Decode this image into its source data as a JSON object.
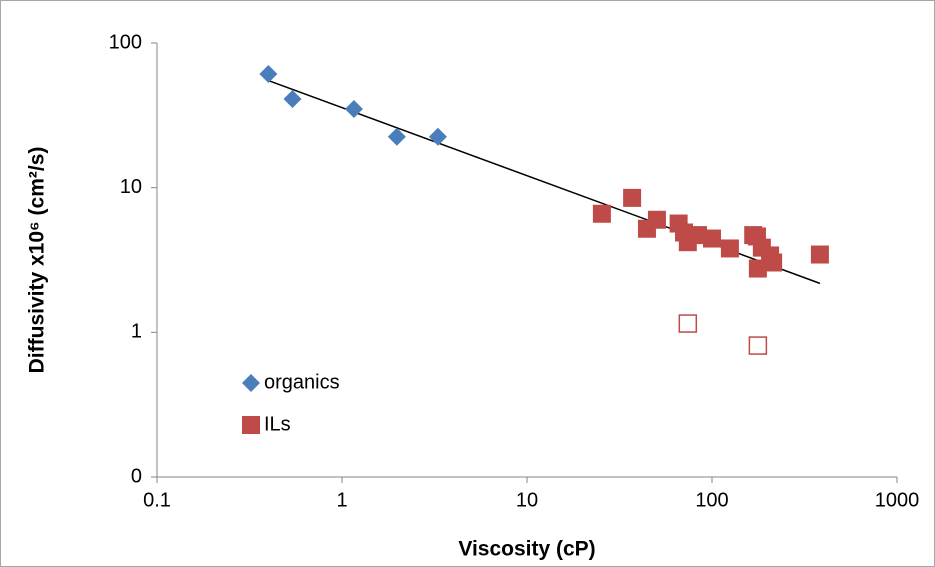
{
  "chart_data": {
    "type": "scatter",
    "xlabel": "Viscosity (cP)",
    "ylabel": "Diffusivity x10⁶ (cm²/s)",
    "xscale": "log",
    "yscale": "log",
    "xlim": [
      0.1,
      1000
    ],
    "ylim": [
      0.1,
      100
    ],
    "xticks": [
      0.1,
      1,
      10,
      100,
      1000
    ],
    "yticks": [
      {
        "value": 0.1,
        "label": "0"
      },
      1,
      10,
      100
    ],
    "series": [
      {
        "name": "organics",
        "color": "#4a7ebb",
        "marker": "diamond",
        "x": [
          0.4,
          0.54,
          1.16,
          1.98,
          3.3
        ],
        "values": [
          61,
          41,
          35,
          22.5,
          22.5
        ]
      },
      {
        "name": "ILs",
        "color": "#be4b48",
        "marker": "square",
        "x": [
          25.4,
          37,
          44.5,
          50.4,
          66,
          70.6,
          74,
          84,
          100,
          125,
          167,
          175,
          177,
          186,
          206,
          214,
          383
        ],
        "values": [
          6.6,
          8.5,
          5.2,
          6.0,
          5.65,
          4.9,
          4.2,
          4.7,
          4.45,
          3.8,
          4.7,
          4.6,
          2.76,
          3.85,
          3.4,
          3.04,
          3.45
        ]
      },
      {
        "color": "#be4b48",
        "marker": "open-square",
        "x": [
          74,
          177
        ],
        "values": [
          1.15,
          0.81
        ]
      }
    ],
    "trendline": {
      "color": "#000000",
      "x": [
        0.4,
        383
      ],
      "values": [
        55,
        2.18
      ]
    }
  }
}
